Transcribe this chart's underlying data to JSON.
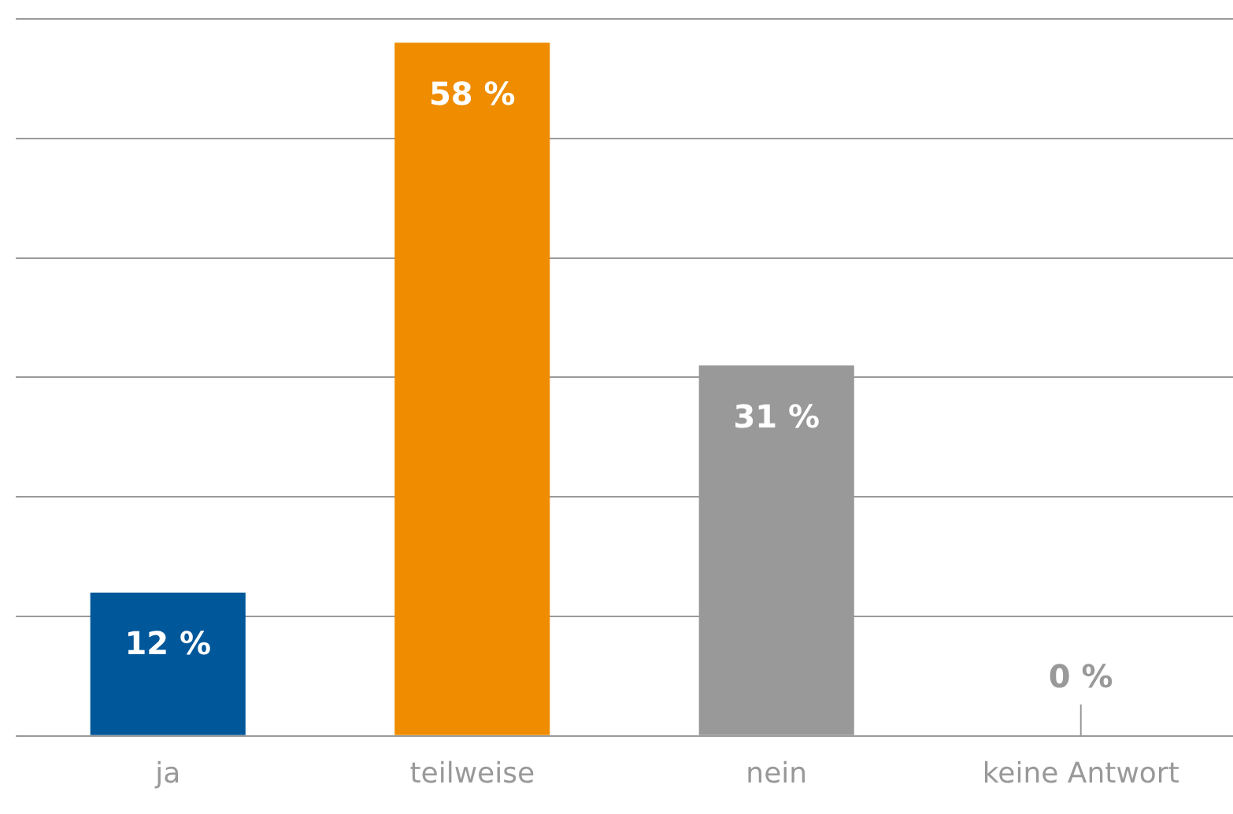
{
  "chart_data": {
    "type": "bar",
    "categories": [
      "ja",
      "teilweise",
      "nein",
      "keine Antwort"
    ],
    "values": [
      12,
      58,
      31,
      0
    ],
    "colors": [
      "#00579a",
      "#ef8c00",
      "#999999",
      "#999999"
    ],
    "value_labels": [
      "12 %",
      "58 %",
      "31 %",
      "0 %"
    ],
    "ylim": [
      0,
      60
    ],
    "yticks": [
      {
        "value": 0,
        "label": null
      },
      {
        "value": 10,
        "label": null
      },
      {
        "value": 20,
        "label": null
      },
      {
        "value": 30,
        "label": null
      },
      {
        "value": 40,
        "label": null
      },
      {
        "value": 50,
        "label": null
      },
      {
        "value": 60,
        "label": null
      }
    ],
    "grid": "y",
    "legend": false,
    "tick_labels": "x"
  }
}
